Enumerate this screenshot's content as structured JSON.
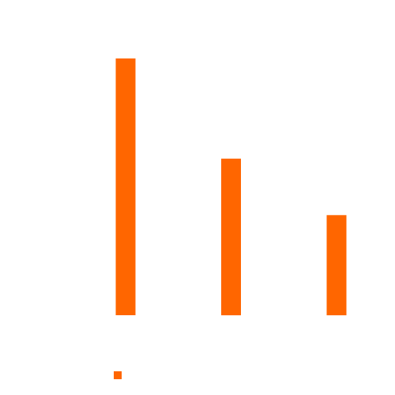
{
  "chart_data": {
    "type": "bar",
    "categories": [
      "",
      "",
      ""
    ],
    "values": [
      100,
      61,
      39
    ],
    "ylim": [
      0,
      100
    ],
    "grid": false,
    "legend": "bottom-left",
    "colors": {
      "bar": "#ff6600",
      "background": "#ffffff"
    }
  }
}
